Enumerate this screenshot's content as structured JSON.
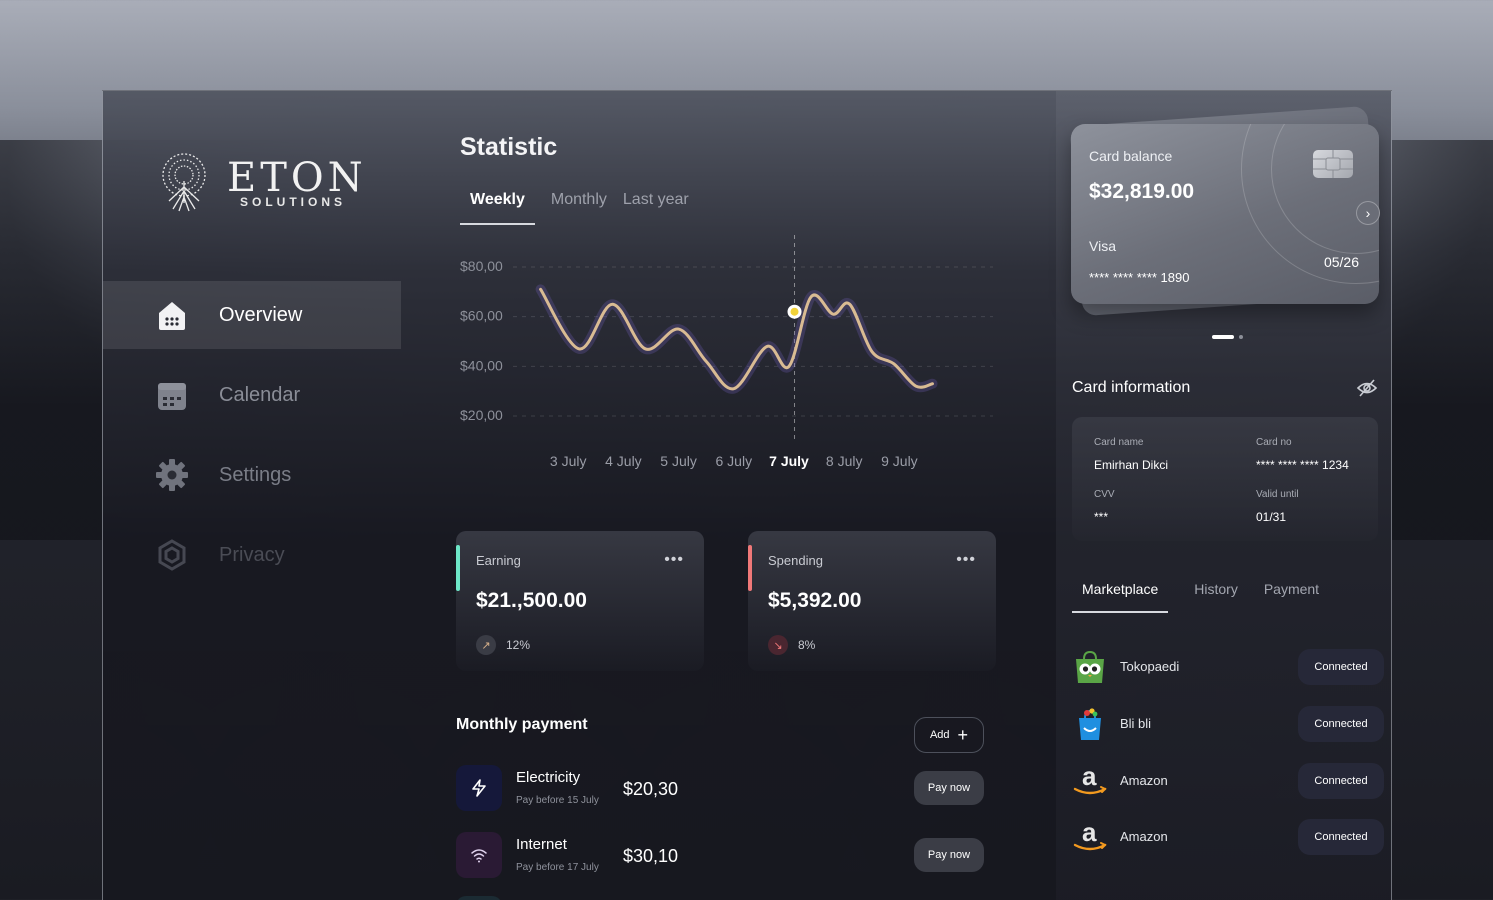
{
  "brand": {
    "name": "ETON",
    "subtitle": "SOLUTIONS"
  },
  "sidebar": {
    "items": [
      {
        "label": "Overview",
        "icon": "home-icon",
        "active": true
      },
      {
        "label": "Calendar",
        "icon": "calendar-icon",
        "active": false
      },
      {
        "label": "Settings",
        "icon": "gear-icon",
        "active": false
      },
      {
        "label": "Privacy",
        "icon": "privacy-icon",
        "active": false
      }
    ]
  },
  "statistic": {
    "title": "Statistic",
    "tabs": [
      {
        "label": "Weekly",
        "active": true
      },
      {
        "label": "Monthly",
        "active": false
      },
      {
        "label": "Last year",
        "active": false
      }
    ]
  },
  "chart_data": {
    "type": "line",
    "categories": [
      "3 July",
      "4 July",
      "5 July",
      "6 July",
      "7 July",
      "8 July",
      "9 July"
    ],
    "highlight_category": "7 July",
    "y_tick_labels": [
      "$80,00",
      "$60,00",
      "$40,00",
      "$20,00"
    ],
    "y_ticks": [
      80,
      60,
      40,
      20
    ],
    "ylim": [
      20,
      80
    ],
    "line_color": "#d9bb93",
    "grid": true,
    "series": [
      {
        "x": [
          2.5,
          3.2,
          3.8,
          4.4,
          5.0,
          5.5,
          6.0,
          6.6,
          7.0,
          7.4,
          7.8,
          8.1,
          8.5,
          8.9,
          9.3,
          9.6
        ],
        "values": [
          71,
          47,
          65,
          47,
          55,
          42,
          31,
          48,
          40,
          68,
          61,
          65,
          46,
          41,
          32,
          33
        ]
      }
    ],
    "highlight_point": {
      "x": 7.1,
      "value": 62
    }
  },
  "summary": {
    "earning": {
      "label": "Earning",
      "value": "$21.,500.00",
      "percent": "12%",
      "accent": "#6ee7c8"
    },
    "spending": {
      "label": "Spending",
      "value": "$5,392.00",
      "percent": "8%",
      "accent": "#f07878"
    }
  },
  "monthly_payment": {
    "title": "Monthly payment",
    "add_label": "Add",
    "items": [
      {
        "name": "Electricity",
        "due": "Pay before 15 July",
        "amount": "$20,30",
        "button": "Pay now",
        "icon": "lightning-icon"
      },
      {
        "name": "Internet",
        "due": "Pay before 17 July",
        "amount": "$30,10",
        "button": "Pay now",
        "icon": "wifi-icon"
      }
    ]
  },
  "card": {
    "balance_label": "Card balance",
    "balance": "$32,819.00",
    "network": "Visa",
    "number": "**** **** **** 1890",
    "expiry": "05/26"
  },
  "card_info": {
    "title": "Card information",
    "name_label": "Card name",
    "name": "Emirhan Dikci",
    "no_label": "Card no",
    "no": "**** **** **** 1234",
    "cvv_label": "CVV",
    "cvv": "***",
    "valid_label": "Valid until",
    "valid": "01/31"
  },
  "market_tabs": [
    {
      "label": "Marketplace",
      "active": true
    },
    {
      "label": "History",
      "active": false
    },
    {
      "label": "Payment",
      "active": false
    }
  ],
  "marketplace": [
    {
      "name": "Tokopaedi",
      "status": "Connected",
      "icon": "tokopedia-logo"
    },
    {
      "name": "Bli bli",
      "status": "Connected",
      "icon": "blibli-logo"
    },
    {
      "name": "Amazon",
      "status": "Connected",
      "icon": "amazon-logo"
    },
    {
      "name": "Amazon",
      "status": "Connected",
      "icon": "amazon-logo"
    }
  ]
}
